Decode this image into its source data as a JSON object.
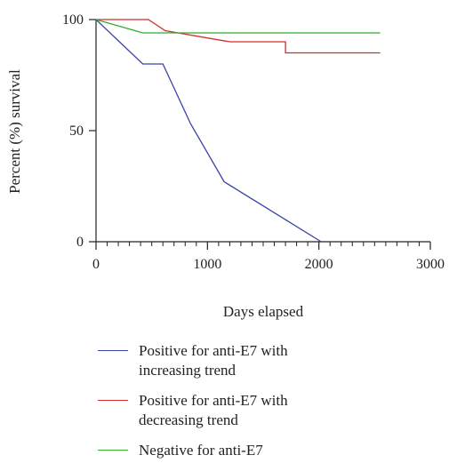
{
  "chart_data": {
    "type": "line",
    "step": true,
    "xlabel": "Days elapsed",
    "ylabel": "Percent (%) survival",
    "xlim": [
      0,
      3000
    ],
    "ylim": [
      0,
      100
    ],
    "x_ticks": [
      "0",
      "1000",
      "2000",
      "3000"
    ],
    "y_ticks": [
      "0",
      "50",
      "100"
    ],
    "series": [
      {
        "name": "Positive for anti-E7 with increasing trend",
        "color": "#3b44a8",
        "points": [
          [
            0,
            100
          ],
          [
            420,
            80
          ],
          [
            600,
            80
          ],
          [
            850,
            53
          ],
          [
            1150,
            27
          ],
          [
            2020,
            0
          ]
        ]
      },
      {
        "name": "Positive for anti-E7 with decreasing trend",
        "color": "#d42a2a",
        "points": [
          [
            0,
            100
          ],
          [
            470,
            100
          ],
          [
            620,
            95
          ],
          [
            1200,
            90
          ],
          [
            1700,
            90
          ],
          [
            1700,
            85
          ],
          [
            2550,
            85
          ]
        ]
      },
      {
        "name": "Negative for anti-E7",
        "color": "#2fae2f",
        "points": [
          [
            0,
            100
          ],
          [
            420,
            94
          ],
          [
            2550,
            94
          ]
        ]
      }
    ]
  }
}
